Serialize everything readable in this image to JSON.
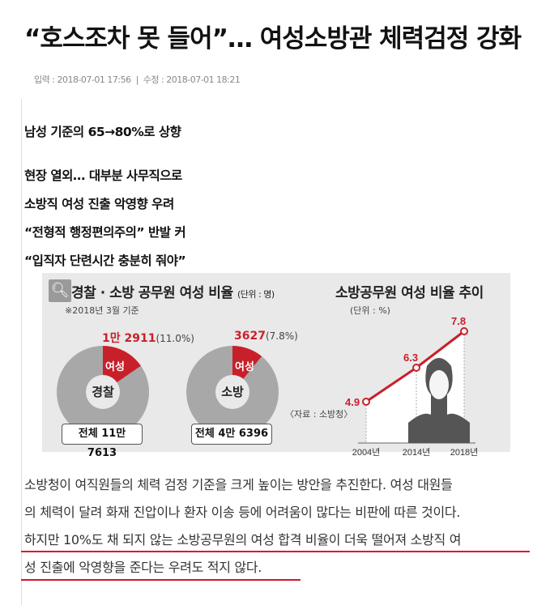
{
  "article": {
    "title": "“호스조차 못 들어”… 여성소방관 체력검정 강화",
    "meta": {
      "input_label": "입력",
      "input_time": "2018-07-01 17:56",
      "separator": "|",
      "edit_label": "수정",
      "edit_time": "2018-07-01 18:21"
    },
    "subtitles": [
      "남성 기준의 65→80%로 상향",
      "현장 열외… 대부분 사무직으로",
      "소방직 여성 진출 악영향 우려",
      "“전형적 행정편의주의” 반발 커",
      "“입직자 단련시간 충분히 줘야”"
    ],
    "body_lines": [
      "소방청이 여직원들의 체력 검정 기준을 크게 높이는 방안을 추진한다. 여성 대원들",
      "의 체력이 달려 화재 진압이나 환자 이송 등에 어려움이 많다는 비판에 따른 것이다.",
      "하지만 10%도 채 되지 않는 소방공무원의 여성 합격 비율이 더욱 떨어져 소방직 여",
      "성 진출에 악영향을 준다는 우려도 적지 않다."
    ]
  },
  "infographic": {
    "zoom_icon": "magnifier-icon",
    "left_title": "경찰 · 소방 공무원 여성 비율",
    "left_unit": "(단위 : 명)",
    "left_note": "※2018년 3월 기준",
    "female_label": "여성",
    "donuts": [
      {
        "name": "경찰",
        "female_count": "1만 2911",
        "female_pct_text": "(11.0%)",
        "female_pct": 11.0,
        "total": "전체 11만 7613"
      },
      {
        "name": "소방",
        "female_count": "3627",
        "female_pct_text": "(7.8%)",
        "female_pct": 7.8,
        "total": "전체 4만 6396"
      }
    ],
    "source": "〈자료 : 소방청〉",
    "colors": {
      "accent": "#c8202a",
      "donut": "#a8a8a8",
      "background": "#e9e9e9"
    }
  },
  "chart_data": {
    "type": "line",
    "title": "소방공무원 여성 비율 추이",
    "unit": "(단위 : %)",
    "categories": [
      "2004년",
      "2014년",
      "2018년"
    ],
    "values": [
      4.9,
      6.3,
      7.8
    ],
    "data_labels": [
      "4.9",
      "6.3",
      "7.8"
    ],
    "color": "#c8202a"
  }
}
